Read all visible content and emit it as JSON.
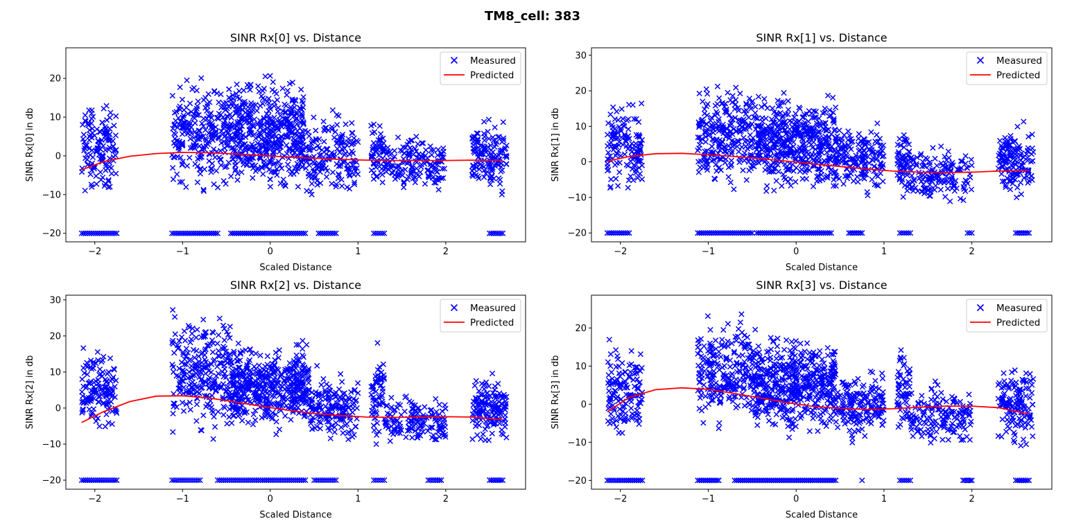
{
  "figure": {
    "suptitle": "TM8_cell: 383"
  },
  "chart_data": [
    {
      "type": "scatter",
      "title": "SINR Rx[0] vs. Distance",
      "xlabel": "Scaled Distance",
      "ylabel": "SINR Rx[0] in db",
      "xlim": [
        -2.33,
        2.91
      ],
      "ylim": [
        -22.2,
        27.9
      ],
      "xticks": [
        -2,
        -1,
        0,
        1,
        2
      ],
      "yticks": [
        -20,
        -10,
        0,
        10,
        20
      ],
      "legend": {
        "position": "top-right",
        "entries": [
          "Measured",
          "Predicted"
        ]
      },
      "series": [
        {
          "name": "Measured",
          "marker": "x",
          "color": "#0000ff",
          "clusters": [
            {
              "x": [
                -2.15,
                -1.75
              ],
              "y": [
                -13,
                19.5
              ],
              "n": 140,
              "center": 2
            },
            {
              "x": [
                -1.12,
                -0.45
              ],
              "y": [
                -15,
                24
              ],
              "n": 260,
              "center": 6
            },
            {
              "x": [
                -0.45,
                0.4
              ],
              "y": [
                -14,
                26
              ],
              "n": 480,
              "center": 5
            },
            {
              "x": [
                0.4,
                1.0
              ],
              "y": [
                -18,
                13
              ],
              "n": 170,
              "center": 0
            },
            {
              "x": [
                1.15,
                1.3
              ],
              "y": [
                -14,
                17
              ],
              "n": 60,
              "center": 2
            },
            {
              "x": [
                1.3,
                2.0
              ],
              "y": [
                -13,
                8
              ],
              "n": 150,
              "center": -2
            },
            {
              "x": [
                2.3,
                2.7
              ],
              "y": [
                -10,
                16
              ],
              "n": 140,
              "center": 0
            }
          ],
          "floor": {
            "y": -20,
            "x": [
              [
                -2.15,
                -1.75
              ],
              [
                -1.12,
                -0.6
              ],
              [
                -0.45,
                0.4
              ],
              [
                0.55,
                0.75
              ],
              [
                1.18,
                1.3
              ],
              [
                2.5,
                2.65
              ]
            ]
          }
        },
        {
          "name": "Predicted",
          "type": "line",
          "color": "#ff0000",
          "x": [
            -2.15,
            -1.9,
            -1.6,
            -1.3,
            -1.0,
            -0.7,
            -0.4,
            -0.1,
            0.2,
            0.5,
            0.8,
            1.1,
            1.4,
            1.7,
            2.0,
            2.3,
            2.65
          ],
          "y": [
            -3.6,
            -1.5,
            -0.1,
            0.6,
            0.9,
            0.8,
            0.5,
            0.1,
            -0.3,
            -0.6,
            -0.9,
            -1.1,
            -1.2,
            -1.2,
            -1.2,
            -1.1,
            -1.2
          ]
        }
      ]
    },
    {
      "type": "scatter",
      "title": "SINR Rx[1] vs. Distance",
      "xlabel": "Scaled Distance",
      "ylabel": "SINR Rx[1] in db",
      "xlim": [
        -2.33,
        2.91
      ],
      "ylim": [
        -22.5,
        32.1
      ],
      "xticks": [
        -2,
        -1,
        0,
        1,
        2
      ],
      "yticks": [
        -20,
        -10,
        0,
        10,
        20,
        30
      ],
      "legend": {
        "position": "top-right",
        "entries": [
          "Measured",
          "Predicted"
        ]
      },
      "series": [
        {
          "name": "Measured",
          "marker": "x",
          "color": "#0000ff",
          "clusters": [
            {
              "x": [
                -2.15,
                -1.75
              ],
              "y": [
                -15,
                19
              ],
              "n": 140,
              "center": 4
            },
            {
              "x": [
                -1.12,
                -0.45
              ],
              "y": [
                -13,
                27
              ],
              "n": 260,
              "center": 8
            },
            {
              "x": [
                -0.45,
                0.45
              ],
              "y": [
                -12,
                25
              ],
              "n": 480,
              "center": 5
            },
            {
              "x": [
                0.45,
                1.0
              ],
              "y": [
                -12,
                15
              ],
              "n": 170,
              "center": 1
            },
            {
              "x": [
                1.15,
                1.3
              ],
              "y": [
                -12,
                15
              ],
              "n": 60,
              "center": 0
            },
            {
              "x": [
                1.3,
                2.0
              ],
              "y": [
                -17,
                5
              ],
              "n": 150,
              "center": -4
            },
            {
              "x": [
                2.3,
                2.7
              ],
              "y": [
                -10,
                19
              ],
              "n": 140,
              "center": 0
            }
          ],
          "floor": {
            "y": -20,
            "x": [
              [
                -2.15,
                -1.9
              ],
              [
                -1.12,
                -0.5
              ],
              [
                -0.45,
                0.4
              ],
              [
                0.6,
                0.75
              ],
              [
                1.18,
                1.3
              ],
              [
                1.95,
                2.0
              ],
              [
                2.5,
                2.65
              ]
            ]
          }
        },
        {
          "name": "Predicted",
          "type": "line",
          "color": "#ff0000",
          "x": [
            -2.15,
            -1.9,
            -1.6,
            -1.3,
            -1.0,
            -0.7,
            -0.4,
            -0.1,
            0.2,
            0.5,
            0.8,
            1.1,
            1.4,
            1.7,
            2.0,
            2.3,
            2.65
          ],
          "y": [
            0.2,
            1.5,
            2.3,
            2.4,
            2.0,
            1.5,
            0.9,
            0.2,
            -0.6,
            -1.3,
            -2.0,
            -2.6,
            -2.9,
            -3.0,
            -2.9,
            -2.6,
            -2.4
          ]
        }
      ]
    },
    {
      "type": "scatter",
      "title": "SINR Rx[2] vs. Distance",
      "xlabel": "Scaled Distance",
      "ylabel": "SINR Rx[2] in db",
      "xlim": [
        -2.33,
        2.91
      ],
      "ylim": [
        -22.5,
        31.3
      ],
      "xticks": [
        -2,
        -1,
        0,
        1,
        2
      ],
      "yticks": [
        -20,
        -10,
        0,
        10,
        20,
        30
      ],
      "legend": {
        "position": "top-right",
        "entries": [
          "Measured",
          "Predicted"
        ]
      },
      "series": [
        {
          "name": "Measured",
          "marker": "x",
          "color": "#0000ff",
          "clusters": [
            {
              "x": [
                -2.15,
                -1.75
              ],
              "y": [
                -11,
                19
              ],
              "n": 140,
              "center": 5
            },
            {
              "x": [
                -1.12,
                -0.45
              ],
              "y": [
                -15,
                29
              ],
              "n": 260,
              "center": 10
            },
            {
              "x": [
                -0.45,
                0.45
              ],
              "y": [
                -8,
                24
              ],
              "n": 480,
              "center": 6
            },
            {
              "x": [
                0.45,
                1.0
              ],
              "y": [
                -15,
                12
              ],
              "n": 170,
              "center": 0
            },
            {
              "x": [
                1.15,
                1.3
              ],
              "y": [
                -15,
                22
              ],
              "n": 60,
              "center": 2
            },
            {
              "x": [
                1.3,
                2.0
              ],
              "y": [
                -14,
                5
              ],
              "n": 150,
              "center": -3
            },
            {
              "x": [
                2.3,
                2.7
              ],
              "y": [
                -10,
                16
              ],
              "n": 140,
              "center": 0
            }
          ],
          "floor": {
            "y": -20,
            "x": [
              [
                -2.15,
                -1.75
              ],
              [
                -1.12,
                -0.8
              ],
              [
                -0.6,
                0.4
              ],
              [
                0.5,
                0.75
              ],
              [
                1.18,
                1.3
              ],
              [
                1.8,
                1.95
              ],
              [
                2.5,
                2.65
              ]
            ]
          }
        },
        {
          "name": "Predicted",
          "type": "line",
          "color": "#ff0000",
          "x": [
            -2.15,
            -1.9,
            -1.6,
            -1.3,
            -1.0,
            -0.7,
            -0.4,
            -0.1,
            0.2,
            0.5,
            0.8,
            1.1,
            1.4,
            1.7,
            2.0,
            2.3,
            2.65
          ],
          "y": [
            -4.0,
            -1.0,
            1.8,
            3.3,
            3.4,
            2.8,
            1.7,
            0.5,
            -0.6,
            -1.5,
            -2.1,
            -2.5,
            -2.6,
            -2.5,
            -2.4,
            -2.5,
            -3.2
          ]
        }
      ]
    },
    {
      "type": "scatter",
      "title": "SINR Rx[3] vs. Distance",
      "xlabel": "Scaled Distance",
      "ylabel": "SINR Rx[3] in db",
      "xlim": [
        -2.33,
        2.91
      ],
      "ylim": [
        -22.3,
        28.6
      ],
      "xticks": [
        -2,
        -1,
        0,
        1,
        2
      ],
      "yticks": [
        -20,
        -10,
        0,
        10,
        20
      ],
      "legend": {
        "position": "top-right",
        "entries": [
          "Measured",
          "Predicted"
        ]
      },
      "series": [
        {
          "name": "Measured",
          "marker": "x",
          "color": "#0000ff",
          "clusters": [
            {
              "x": [
                -2.15,
                -1.75
              ],
              "y": [
                -14,
                18
              ],
              "n": 140,
              "center": 4
            },
            {
              "x": [
                -1.12,
                -0.45
              ],
              "y": [
                -13,
                26
              ],
              "n": 260,
              "center": 8
            },
            {
              "x": [
                -0.45,
                0.45
              ],
              "y": [
                -11,
                23
              ],
              "n": 480,
              "center": 5
            },
            {
              "x": [
                0.45,
                1.0
              ],
              "y": [
                -11,
                13
              ],
              "n": 170,
              "center": 0
            },
            {
              "x": [
                1.15,
                1.3
              ],
              "y": [
                -10,
                19
              ],
              "n": 60,
              "center": 4
            },
            {
              "x": [
                1.3,
                2.0
              ],
              "y": [
                -18,
                6
              ],
              "n": 150,
              "center": -3
            },
            {
              "x": [
                2.3,
                2.7
              ],
              "y": [
                -13,
                17
              ],
              "n": 140,
              "center": 0
            }
          ],
          "floor": {
            "y": -20,
            "x": [
              [
                -2.15,
                -1.75
              ],
              [
                -1.12,
                -0.88
              ],
              [
                -0.7,
                0.45
              ],
              [
                0.75,
                0.75
              ],
              [
                1.18,
                1.3
              ],
              [
                1.9,
                2.0
              ],
              [
                2.5,
                2.65
              ]
            ]
          }
        },
        {
          "name": "Predicted",
          "type": "line",
          "color": "#ff0000",
          "x": [
            -2.15,
            -1.9,
            -1.6,
            -1.3,
            -1.0,
            -0.7,
            -0.4,
            -0.1,
            0.2,
            0.5,
            0.8,
            1.1,
            1.4,
            1.7,
            2.0,
            2.3,
            2.65
          ],
          "y": [
            -2.0,
            1.8,
            3.8,
            4.3,
            3.9,
            2.8,
            1.6,
            0.4,
            -0.6,
            -1.1,
            -1.4,
            -1.2,
            -0.8,
            -0.5,
            -0.5,
            -0.9,
            -2.6
          ]
        }
      ]
    }
  ]
}
